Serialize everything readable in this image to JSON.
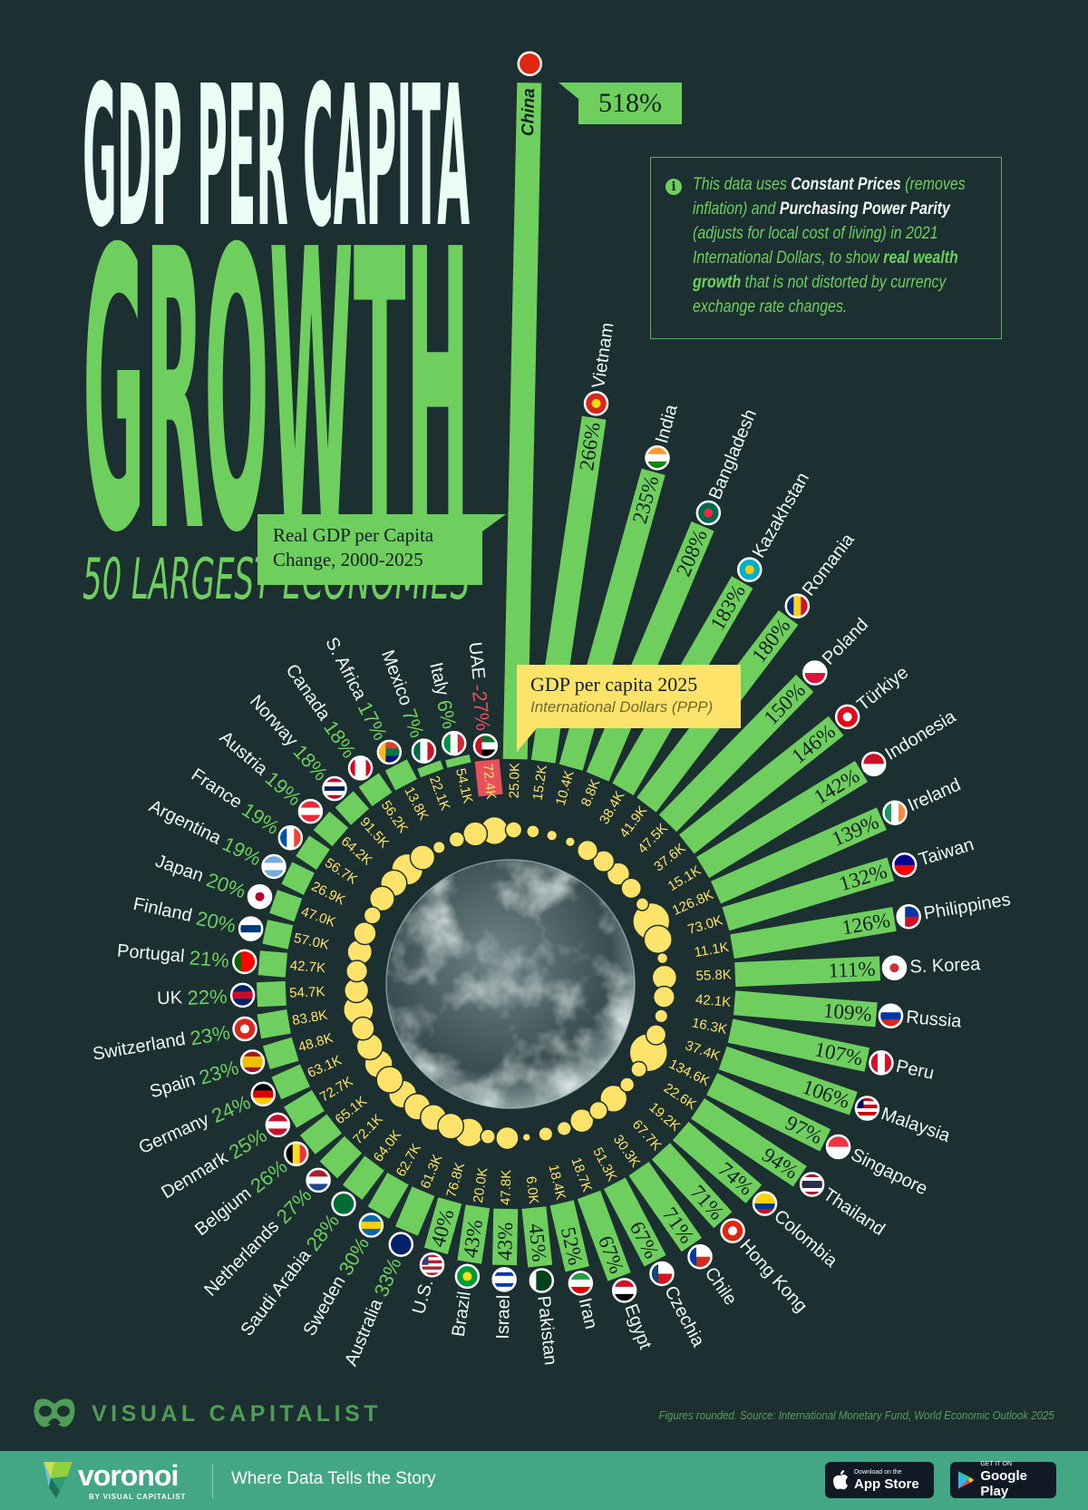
{
  "header": {
    "title_line1": "GDP PER CAPITA",
    "title_line2": "GROWTH",
    "subtitle": "50 LARGEST ECONOMIES"
  },
  "info": {
    "icon": "info-icon",
    "lines": [
      [
        {
          "text": "This data uses ",
          "style": "n"
        },
        {
          "text": "Constant Prices",
          "style": "b1"
        },
        {
          "text": " (removes",
          "style": "n"
        }
      ],
      [
        {
          "text": "inflation) and ",
          "style": "n"
        },
        {
          "text": "Purchasing Power Parity",
          "style": "b1"
        }
      ],
      [
        {
          "text": "(adjusts for local cost of living) in 2021",
          "style": "n"
        }
      ],
      [
        {
          "text": "International Dollars, to show ",
          "style": "n"
        },
        {
          "text": "real wealth",
          "style": "b2"
        }
      ],
      [
        {
          "text": "growth",
          "style": "b2"
        },
        {
          "text": " that is not distorted by currency",
          "style": "n"
        }
      ],
      [
        {
          "text": "exchange rate changes.",
          "style": "n"
        }
      ]
    ]
  },
  "legend": {
    "bars_line1": "Real GDP per Capita",
    "bars_line2": "Change, 2000-2025",
    "bubbles_title": "GDP per capita 2025",
    "bubbles_subtitle": "International Dollars (PPP)"
  },
  "colors": {
    "background": "#1c2f31",
    "bar": "#6fcf5e",
    "negative": "#e8505b",
    "bubble": "#fde36a",
    "label_text": "#eefaf2",
    "footer": "#43a685"
  },
  "chart_data": {
    "type": "bar",
    "layout": "radial",
    "series": [
      {
        "name": "Real GDP per Capita Change, 2000-2025",
        "unit": "%"
      },
      {
        "name": "GDP per capita 2025",
        "unit": "International Dollars (PPP)"
      }
    ],
    "items": [
      {
        "country": "UAE",
        "growth_pct": -27,
        "growth_label": "-27%",
        "gdp_k": 72.4,
        "gdp_label": "72.4K",
        "flag": [
          "#00732f",
          "#ffffff",
          "#000000"
        ],
        "flag_dir": "h",
        "flag_side": "#ce1126"
      },
      {
        "country": "China",
        "growth_pct": 518,
        "growth_label": "518%",
        "gdp_k": 25.0,
        "gdp_label": "25.0K",
        "flag": [
          "#de2910"
        ],
        "flag_dir": "h",
        "callout": true
      },
      {
        "country": "Vietnam",
        "growth_pct": 266,
        "growth_label": "266%",
        "gdp_k": 15.2,
        "gdp_label": "15.2K",
        "flag": [
          "#da251d"
        ],
        "flag_dir": "h",
        "flag_dot": "#ffdd00"
      },
      {
        "country": "India",
        "growth_pct": 235,
        "growth_label": "235%",
        "gdp_k": 10.4,
        "gdp_label": "10.4K",
        "flag": [
          "#ff9933",
          "#ffffff",
          "#138808"
        ],
        "flag_dir": "h"
      },
      {
        "country": "Bangladesh",
        "growth_pct": 208,
        "growth_label": "208%",
        "gdp_k": 8.8,
        "gdp_label": "8.8K",
        "flag": [
          "#006a4e"
        ],
        "flag_dir": "h",
        "flag_dot": "#f42a41"
      },
      {
        "country": "Kazakhstan",
        "growth_pct": 183,
        "growth_label": "183%",
        "gdp_k": 38.4,
        "gdp_label": "38.4K",
        "flag": [
          "#00afca"
        ],
        "flag_dir": "h",
        "flag_dot": "#fec50c"
      },
      {
        "country": "Romania",
        "growth_pct": 180,
        "growth_label": "180%",
        "gdp_k": 41.9,
        "gdp_label": "41.9K",
        "flag": [
          "#002b7f",
          "#fcd116",
          "#ce1126"
        ],
        "flag_dir": "v"
      },
      {
        "country": "Poland",
        "growth_pct": 150,
        "growth_label": "150%",
        "gdp_k": 47.5,
        "gdp_label": "47.5K",
        "flag": [
          "#ffffff",
          "#dc143c"
        ],
        "flag_dir": "h"
      },
      {
        "country": "Türkiye",
        "growth_pct": 146,
        "growth_label": "146%",
        "gdp_k": 37.6,
        "gdp_label": "37.6K",
        "flag": [
          "#e30a17"
        ],
        "flag_dir": "h",
        "flag_dot": "#ffffff"
      },
      {
        "country": "Indonesia",
        "growth_pct": 142,
        "growth_label": "142%",
        "gdp_k": 15.1,
        "gdp_label": "15.1K",
        "flag": [
          "#ce1126",
          "#ffffff"
        ],
        "flag_dir": "h"
      },
      {
        "country": "Ireland",
        "growth_pct": 139,
        "growth_label": "139%",
        "gdp_k": 126.8,
        "gdp_label": "126.8K",
        "flag": [
          "#169b62",
          "#ffffff",
          "#ff883e"
        ],
        "flag_dir": "v"
      },
      {
        "country": "Taiwan",
        "growth_pct": 132,
        "growth_label": "132%",
        "gdp_k": 73.0,
        "gdp_label": "73.0K",
        "flag": [
          "#000095",
          "#fe0000"
        ],
        "flag_dir": "h"
      },
      {
        "country": "Philippines",
        "growth_pct": 126,
        "growth_label": "126%",
        "gdp_k": 11.1,
        "gdp_label": "11.1K",
        "flag": [
          "#0038a8",
          "#ce1126"
        ],
        "flag_dir": "h",
        "flag_side": "#ffffff"
      },
      {
        "country": "S. Korea",
        "growth_pct": 111,
        "growth_label": "111%",
        "gdp_k": 55.8,
        "gdp_label": "55.8K",
        "flag": [
          "#ffffff"
        ],
        "flag_dir": "h",
        "flag_dot": "#cd2e3a"
      },
      {
        "country": "Russia",
        "growth_pct": 109,
        "growth_label": "109%",
        "gdp_k": 42.1,
        "gdp_label": "42.1K",
        "flag": [
          "#ffffff",
          "#0039a6",
          "#d52b1e"
        ],
        "flag_dir": "h"
      },
      {
        "country": "Peru",
        "growth_pct": 107,
        "growth_label": "107%",
        "gdp_k": 16.3,
        "gdp_label": "16.3K",
        "flag": [
          "#d91023",
          "#ffffff",
          "#d91023"
        ],
        "flag_dir": "v"
      },
      {
        "country": "Malaysia",
        "growth_pct": 106,
        "growth_label": "106%",
        "gdp_k": 37.4,
        "gdp_label": "37.4K",
        "flag": [
          "#cc0001",
          "#ffffff",
          "#cc0001",
          "#ffffff",
          "#cc0001",
          "#ffffff"
        ],
        "flag_dir": "h",
        "flag_side": "#010066"
      },
      {
        "country": "Singapore",
        "growth_pct": 97,
        "growth_label": "97%",
        "gdp_k": 134.6,
        "gdp_label": "134.6K",
        "flag": [
          "#ef3340",
          "#ffffff"
        ],
        "flag_dir": "h"
      },
      {
        "country": "Thailand",
        "growth_pct": 94,
        "growth_label": "94%",
        "gdp_k": 22.6,
        "gdp_label": "22.6K",
        "flag": [
          "#a51931",
          "#ffffff",
          "#2d2a4a",
          "#2d2a4a",
          "#ffffff",
          "#a51931"
        ],
        "flag_dir": "h"
      },
      {
        "country": "Colombia",
        "growth_pct": 74,
        "growth_label": "74%",
        "gdp_k": 19.2,
        "gdp_label": "19.2K",
        "flag": [
          "#fcd116",
          "#fcd116",
          "#003893",
          "#ce1126"
        ],
        "flag_dir": "h"
      },
      {
        "country": "Hong Kong",
        "growth_pct": 71,
        "growth_label": "71%",
        "gdp_k": 67.7,
        "gdp_label": "67.7K",
        "flag": [
          "#de2910"
        ],
        "flag_dir": "h",
        "flag_dot": "#ffffff"
      },
      {
        "country": "Chile",
        "growth_pct": 71,
        "growth_label": "71%",
        "gdp_k": 30.3,
        "gdp_label": "30.3K",
        "flag": [
          "#ffffff",
          "#d52b1e"
        ],
        "flag_dir": "h",
        "flag_side": "#0039a6"
      },
      {
        "country": "Czechia",
        "growth_pct": 67,
        "growth_label": "67%",
        "gdp_k": 51.3,
        "gdp_label": "51.3K",
        "flag": [
          "#ffffff",
          "#d7141a"
        ],
        "flag_dir": "h",
        "flag_side": "#11457e"
      },
      {
        "country": "Egypt",
        "growth_pct": 67,
        "growth_label": "67%",
        "gdp_k": 18.7,
        "gdp_label": "18.7K",
        "flag": [
          "#ce1126",
          "#ffffff",
          "#000000"
        ],
        "flag_dir": "h"
      },
      {
        "country": "Iran",
        "growth_pct": 52,
        "growth_label": "52%",
        "gdp_k": 18.4,
        "gdp_label": "18.4K",
        "flag": [
          "#239f40",
          "#ffffff",
          "#da0000"
        ],
        "flag_dir": "h"
      },
      {
        "country": "Pakistan",
        "growth_pct": 45,
        "growth_label": "45%",
        "gdp_k": 6.0,
        "gdp_label": "6.0K",
        "flag": [
          "#ffffff",
          "#01411c",
          "#01411c",
          "#01411c"
        ],
        "flag_dir": "v"
      },
      {
        "country": "Israel",
        "growth_pct": 43,
        "growth_label": "43%",
        "gdp_k": 47.8,
        "gdp_label": "47.8K",
        "flag": [
          "#ffffff",
          "#0038b8",
          "#ffffff",
          "#ffffff",
          "#0038b8",
          "#ffffff"
        ],
        "flag_dir": "h"
      },
      {
        "country": "Brazil",
        "growth_pct": 43,
        "growth_label": "43%",
        "gdp_k": 20.0,
        "gdp_label": "20.0K",
        "flag": [
          "#009c3b"
        ],
        "flag_dir": "h",
        "flag_dot": "#ffdf00"
      },
      {
        "country": "U.S.",
        "growth_pct": 40,
        "growth_label": "40%",
        "gdp_k": 76.8,
        "gdp_label": "76.8K",
        "flag": [
          "#b22234",
          "#ffffff",
          "#b22234",
          "#ffffff",
          "#b22234",
          "#ffffff",
          "#b22234"
        ],
        "flag_dir": "h",
        "flag_side": "#3c3b6e"
      },
      {
        "country": "Australia",
        "growth_pct": 33,
        "growth_label": "33%",
        "gdp_k": 61.3,
        "gdp_label": "61.3K",
        "flag": [
          "#012169"
        ],
        "flag_dir": "h"
      },
      {
        "country": "Sweden",
        "growth_pct": 30,
        "growth_label": "30%",
        "gdp_k": 62.7,
        "gdp_label": "62.7K",
        "flag": [
          "#006aa7",
          "#fecc00",
          "#006aa7"
        ],
        "flag_dir": "h"
      },
      {
        "country": "Saudi Arabia",
        "growth_pct": 28,
        "growth_label": "28%",
        "gdp_k": 64.0,
        "gdp_label": "64.0K",
        "flag": [
          "#006c35"
        ],
        "flag_dir": "h"
      },
      {
        "country": "Netherlands",
        "growth_pct": 27,
        "growth_label": "27%",
        "gdp_k": 72.1,
        "gdp_label": "72.1K",
        "flag": [
          "#ae1c28",
          "#ffffff",
          "#21468b"
        ],
        "flag_dir": "h"
      },
      {
        "country": "Belgium",
        "growth_pct": 26,
        "growth_label": "26%",
        "gdp_k": 65.1,
        "gdp_label": "65.1K",
        "flag": [
          "#000000",
          "#fdda24",
          "#ef3340"
        ],
        "flag_dir": "v"
      },
      {
        "country": "Denmark",
        "growth_pct": 25,
        "growth_label": "25%",
        "gdp_k": 72.7,
        "gdp_label": "72.7K",
        "flag": [
          "#c8102e",
          "#ffffff",
          "#c8102e"
        ],
        "flag_dir": "h"
      },
      {
        "country": "Germany",
        "growth_pct": 24,
        "growth_label": "24%",
        "gdp_k": 63.1,
        "gdp_label": "63.1K",
        "flag": [
          "#000000",
          "#dd0000",
          "#ffce00"
        ],
        "flag_dir": "h"
      },
      {
        "country": "Spain",
        "growth_pct": 23,
        "growth_label": "23%",
        "gdp_k": 48.8,
        "gdp_label": "48.8K",
        "flag": [
          "#aa151b",
          "#f1bf00",
          "#f1bf00",
          "#aa151b"
        ],
        "flag_dir": "h"
      },
      {
        "country": "Switzerland",
        "growth_pct": 23,
        "growth_label": "23%",
        "gdp_k": 83.8,
        "gdp_label": "83.8K",
        "flag": [
          "#da291c"
        ],
        "flag_dir": "h",
        "flag_dot": "#ffffff"
      },
      {
        "country": "UK",
        "growth_pct": 22,
        "growth_label": "22%",
        "gdp_k": 54.7,
        "gdp_label": "54.7K",
        "flag": [
          "#012169",
          "#c8102e",
          "#012169"
        ],
        "flag_dir": "h"
      },
      {
        "country": "Portugal",
        "growth_pct": 21,
        "growth_label": "21%",
        "gdp_k": 42.7,
        "gdp_label": "42.7K",
        "flag": [
          "#006600",
          "#ff0000",
          "#ff0000"
        ],
        "flag_dir": "v"
      },
      {
        "country": "Finland",
        "growth_pct": 20,
        "growth_label": "20%",
        "gdp_k": 57.0,
        "gdp_label": "57.0K",
        "flag": [
          "#ffffff",
          "#003580",
          "#ffffff"
        ],
        "flag_dir": "h"
      },
      {
        "country": "Japan",
        "growth_pct": 20,
        "growth_label": "20%",
        "gdp_k": 47.0,
        "gdp_label": "47.0K",
        "flag": [
          "#ffffff"
        ],
        "flag_dir": "h",
        "flag_dot": "#bc002d"
      },
      {
        "country": "Argentina",
        "growth_pct": 19,
        "growth_label": "19%",
        "gdp_k": 26.9,
        "gdp_label": "26.9K",
        "flag": [
          "#74acdf",
          "#ffffff",
          "#74acdf"
        ],
        "flag_dir": "h"
      },
      {
        "country": "France",
        "growth_pct": 19,
        "growth_label": "19%",
        "gdp_k": 56.7,
        "gdp_label": "56.7K",
        "flag": [
          "#0055a4",
          "#ffffff",
          "#ef4135"
        ],
        "flag_dir": "v"
      },
      {
        "country": "Austria",
        "growth_pct": 19,
        "growth_label": "19%",
        "gdp_k": 64.2,
        "gdp_label": "64.2K",
        "flag": [
          "#ed2939",
          "#ffffff",
          "#ed2939"
        ],
        "flag_dir": "h"
      },
      {
        "country": "Norway",
        "growth_pct": 18,
        "growth_label": "18%",
        "gdp_k": 91.5,
        "gdp_label": "91.5K",
        "flag": [
          "#ba0c2f",
          "#ffffff",
          "#00205b",
          "#ffffff",
          "#ba0c2f"
        ],
        "flag_dir": "h"
      },
      {
        "country": "Canada",
        "growth_pct": 18,
        "growth_label": "18%",
        "gdp_k": 56.2,
        "gdp_label": "56.2K",
        "flag": [
          "#d80621",
          "#ffffff",
          "#ffffff",
          "#d80621"
        ],
        "flag_dir": "v"
      },
      {
        "country": "S. Africa",
        "growth_pct": 17,
        "growth_label": "17%",
        "gdp_k": 13.8,
        "gdp_label": "13.8K",
        "flag": [
          "#e03c31",
          "#007749",
          "#001489"
        ],
        "flag_dir": "h",
        "flag_side": "#ffb81c"
      },
      {
        "country": "Mexico",
        "growth_pct": 7,
        "growth_label": "7%",
        "gdp_k": 22.1,
        "gdp_label": "22.1K",
        "flag": [
          "#006847",
          "#ffffff",
          "#ce1126"
        ],
        "flag_dir": "v"
      },
      {
        "country": "Italy",
        "growth_pct": 6,
        "growth_label": "6%",
        "gdp_k": 54.1,
        "gdp_label": "54.1K",
        "flag": [
          "#009246",
          "#ffffff",
          "#ce2b37"
        ],
        "flag_dir": "v"
      }
    ]
  },
  "footer": {
    "brand": "VISUAL CAPITALIST",
    "source": "Figures rounded. Source: International Monetary Fund, World Economic Outlook 2025",
    "voronoi": "voronoi",
    "voronoi_sub": "BY VISUAL CAPITALIST",
    "tagline": "Where Data Tells the Story",
    "appstore_small": "Download on the",
    "appstore_big": "App Store",
    "googleplay_small": "GET IT ON",
    "googleplay_big": "Google Play"
  }
}
